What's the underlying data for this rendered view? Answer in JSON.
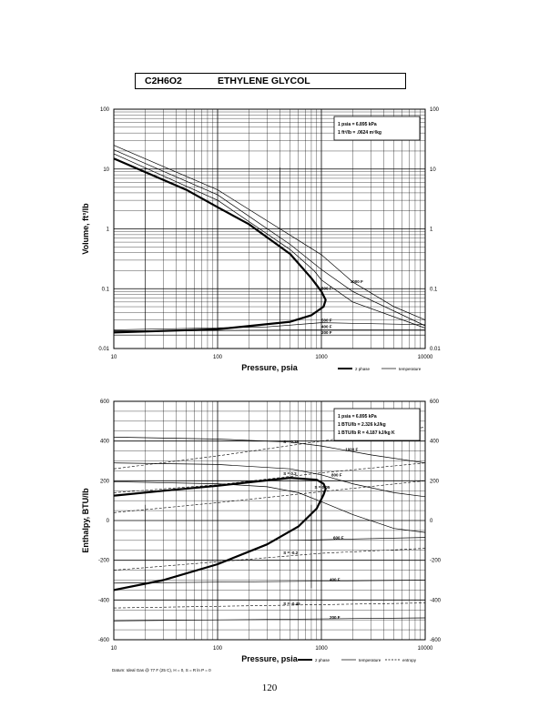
{
  "header": {
    "formula": "C2H6O2",
    "name": "ETHYLENE GLYCOL"
  },
  "page_number": "120",
  "chart_data": [
    {
      "type": "line",
      "xscale": "log",
      "yscale": "log",
      "xlim": [
        10,
        10000
      ],
      "ylim": [
        0.01,
        100
      ],
      "xlabel": "Pressure,  psia",
      "ylabel": "Volume, ft^3/lb",
      "x_ticks": [
        "10",
        "100",
        "1000",
        "10000"
      ],
      "y_ticks": [
        "100",
        "10",
        "1",
        "0.1",
        "0.01"
      ],
      "y_ticks_right": [
        "100",
        "10",
        "1",
        "0.1",
        "0.01"
      ],
      "grid": true,
      "info_box": [
        "1 psia = 6.895 kPa",
        "1 ft^3/lb = .0624 m^3/kg"
      ],
      "legend": {
        "position": "bottom-right",
        "items": [
          {
            "label": "2 phase",
            "style": "thick"
          },
          {
            "label": "temperature",
            "style": "thin"
          }
        ]
      },
      "series": [
        {
          "label": "1000 F",
          "label_at": [
            1900,
            0.125
          ],
          "points": [
            [
              10,
              25
            ],
            [
              100,
              4.5
            ],
            [
              1000,
              0.37
            ],
            [
              2000,
              0.13
            ],
            [
              5000,
              0.05
            ],
            [
              10000,
              0.03
            ]
          ]
        },
        {
          "label": "800 F",
          "label_at": [
            1000,
            0.095
          ],
          "points": [
            [
              10,
              21
            ],
            [
              100,
              3.7
            ],
            [
              500,
              0.55
            ],
            [
              1000,
              0.21
            ],
            [
              2000,
              0.09
            ],
            [
              10000,
              0.024
            ]
          ]
        },
        {
          "type": "isotherm-partial",
          "points": [
            [
              10,
              18
            ],
            [
              100,
              3.0
            ],
            [
              500,
              0.45
            ],
            [
              850,
              0.2
            ],
            [
              1000,
              0.14
            ],
            [
              2000,
              0.06
            ],
            [
              10000,
              0.022
            ]
          ]
        },
        {
          "label": "500 F",
          "label_at": [
            1000,
            0.028
          ],
          "points": [
            [
              10,
              0.0205
            ],
            [
              300,
              0.023
            ],
            [
              1000,
              0.027
            ],
            [
              3000,
              0.026
            ],
            [
              10000,
              0.025
            ]
          ]
        },
        {
          "label": "400 F",
          "label_at": [
            1000,
            0.022
          ],
          "points": [
            [
              10,
              0.0195
            ],
            [
              1000,
              0.0205
            ],
            [
              10000,
              0.0205
            ]
          ]
        },
        {
          "label": "200 F",
          "label_at": [
            1000,
            0.0175
          ],
          "points": [
            [
              10,
              0.0168
            ],
            [
              10000,
              0.0168
            ]
          ]
        }
      ],
      "saturation_curve": [
        [
          10,
          0.0185
        ],
        [
          100,
          0.021
        ],
        [
          500,
          0.028
        ],
        [
          800,
          0.036
        ],
        [
          1050,
          0.05
        ],
        [
          1100,
          0.065
        ],
        [
          1000,
          0.09
        ],
        [
          800,
          0.15
        ],
        [
          500,
          0.38
        ],
        [
          200,
          1.2
        ],
        [
          100,
          2.3
        ],
        [
          50,
          4.5
        ],
        [
          10,
          15
        ]
      ],
      "quality_lines_x": [
        20,
        400
      ]
    },
    {
      "type": "line",
      "xscale": "log",
      "yscale": "linear",
      "xlim": [
        10,
        10000
      ],
      "ylim": [
        -600,
        600
      ],
      "xlabel": "Pressure,  psia",
      "ylabel": "Enthalpy, BTU/lb",
      "x_ticks": [
        "10",
        "100",
        "1000",
        "10000"
      ],
      "y_ticks": [
        "600",
        "400",
        "200",
        "0",
        "-200",
        "-400",
        "-600"
      ],
      "y_ticks_right": [
        "600",
        "400",
        "200",
        "0",
        "-200",
        "-400",
        "-600"
      ],
      "grid": true,
      "info_box": [
        "1 psia = 6.895 kPa",
        "1 BTU/lb = 2.326 kJ/kg",
        "1 BTU/lb R = 4.187 kJ/kg K"
      ],
      "footnote": "Datum: Ideal Gas @ 77 F (25 C), H = 0, S = R ln P = 0",
      "legend": {
        "position": "bottom-right",
        "items": [
          {
            "label": "2 phase",
            "style": "thick"
          },
          {
            "label": "temperature",
            "style": "thin"
          },
          {
            "label": "entropy",
            "style": "dashed"
          }
        ]
      },
      "temperature_series": [
        {
          "label": "1000 F",
          "label_at": [
            1700,
            350
          ],
          "points": [
            [
              10,
              420
            ],
            [
              100,
              410
            ],
            [
              500,
              395
            ],
            [
              1000,
              375
            ],
            [
              3000,
              330
            ],
            [
              10000,
              290
            ]
          ]
        },
        {
          "label": "800 F",
          "label_at": [
            1250,
            222
          ],
          "points": [
            [
              10,
              290
            ],
            [
              100,
              282
            ],
            [
              500,
              260
            ],
            [
              1000,
              230
            ],
            [
              2000,
              185
            ],
            [
              5000,
              140
            ],
            [
              10000,
              120
            ]
          ]
        },
        {
          "type": "isotherm-partial",
          "points": [
            [
              10,
              195
            ],
            [
              100,
              185
            ],
            [
              300,
              170
            ],
            [
              600,
              140
            ],
            [
              1000,
              95
            ],
            [
              2000,
              30
            ],
            [
              5000,
              -40
            ],
            [
              10000,
              -60
            ]
          ]
        },
        {
          "label": "600 F",
          "label_at": [
            1300,
            -95
          ],
          "points": [
            [
              500,
              -100
            ],
            [
              10000,
              -85
            ]
          ]
        },
        {
          "label": "400 F",
          "label_at": [
            1200,
            -305
          ],
          "points": [
            [
              10,
              -315
            ],
            [
              10000,
              -300
            ]
          ]
        },
        {
          "label": "200 F",
          "label_at": [
            1200,
            -495
          ],
          "points": [
            [
              10,
              -505
            ],
            [
              10000,
              -490
            ]
          ]
        }
      ],
      "entropy_series": [
        {
          "label": "S = 0.35",
          "label_at": [
            430,
            390
          ],
          "points": [
            [
              10,
              260
            ],
            [
              100,
              325
            ],
            [
              1000,
              400
            ],
            [
              10000,
              470
            ]
          ]
        },
        {
          "label": "S = 0.2",
          "label_at": [
            430,
            230
          ],
          "points": [
            [
              10,
              140
            ],
            [
              100,
              180
            ],
            [
              1000,
              240
            ],
            [
              10000,
              290
            ]
          ]
        },
        {
          "label": "S = 0.05",
          "label_at": [
            860,
            160
          ],
          "points": [
            [
              10,
              40
            ],
            [
              100,
              90
            ],
            [
              1000,
              145
            ],
            [
              10000,
              200
            ]
          ]
        },
        {
          "label": "S = -0.2",
          "label_at": [
            430,
            -170
          ],
          "points": [
            [
              10,
              -250
            ],
            [
              1000,
              -165
            ],
            [
              10000,
              -140
            ]
          ]
        },
        {
          "label": "S = -0.45",
          "label_at": [
            430,
            -425
          ],
          "points": [
            [
              10,
              -440
            ],
            [
              10000,
              -415
            ]
          ]
        }
      ],
      "saturation_curve": [
        [
          10,
          -350
        ],
        [
          30,
          -300
        ],
        [
          100,
          -220
        ],
        [
          300,
          -120
        ],
        [
          600,
          -30
        ],
        [
          900,
          60
        ],
        [
          1050,
          130
        ],
        [
          1100,
          160
        ],
        [
          1050,
          185
        ],
        [
          900,
          205
        ],
        [
          500,
          215
        ],
        [
          100,
          175
        ],
        [
          30,
          150
        ],
        [
          10,
          125
        ]
      ],
      "quality_lines_x": [
        20,
        800
      ]
    }
  ]
}
